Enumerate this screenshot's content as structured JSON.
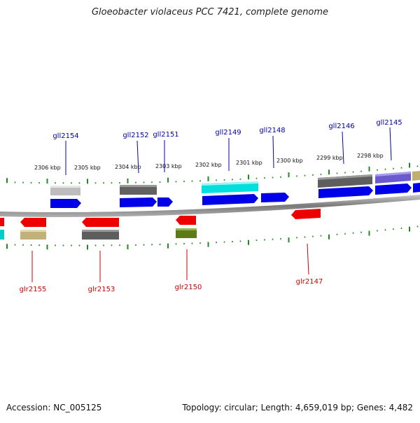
{
  "title": "Gloeobacter violaceus PCC 7421, complete genome",
  "footer": {
    "accession": "Accession: NC_005125",
    "summary": "Topology: circular; Length: 4,659,019 bp; Genes: 4,482"
  },
  "colors": {
    "forward_label": "#0000aa",
    "reverse_label": "#cc0000",
    "tick": "#228822",
    "backbone": "#8a8a8a"
  },
  "scale": {
    "unit": "kbp",
    "labels": [
      "2306 kbp",
      "2305 kbp",
      "2304 kbp",
      "2303 kbp",
      "2302 kbp",
      "2301 kbp",
      "2300 kbp",
      "2299 kbp",
      "2298 kbp"
    ]
  },
  "genes": {
    "forward": [
      "gll2154",
      "gll2152",
      "gll2151",
      "gll2149",
      "gll2148",
      "gll2146",
      "gll2145"
    ],
    "reverse": [
      "glr2155",
      "glr2153",
      "glr2150",
      "glr2147"
    ]
  }
}
